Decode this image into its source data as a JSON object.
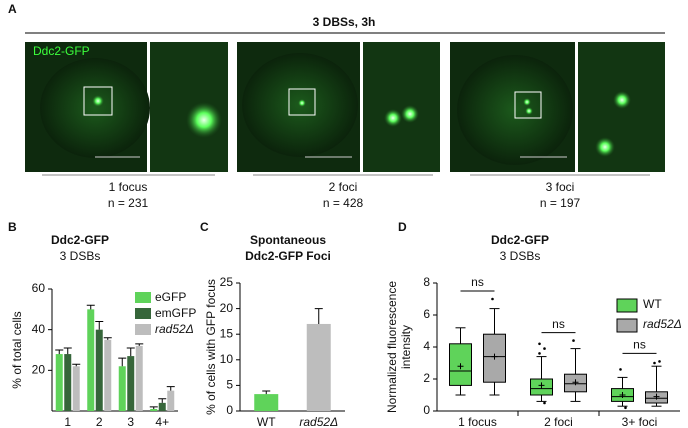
{
  "panels": [
    "A",
    "B",
    "C",
    "D"
  ],
  "panel_a": {
    "title": "3 DBSs, 3h",
    "image_label": "Ddc2-GFP",
    "groups": [
      {
        "label": "1 focus",
        "n": "n = 231"
      },
      {
        "label": "2 foci",
        "n": "n = 428"
      },
      {
        "label": "3 foci",
        "n": "n = 197"
      }
    ]
  },
  "chart_data": [
    {
      "type": "bar",
      "title": "Ddc2-GFP",
      "subtitle": "3 DSBs",
      "y_label": "% of total cells",
      "categories": [
        "1",
        "2",
        "3",
        "4+"
      ],
      "series": [
        {
          "name": "eGFP",
          "color": "#5fd35a",
          "values": [
            28,
            50,
            22,
            1
          ],
          "errors": [
            2,
            2,
            4,
            1
          ]
        },
        {
          "name": "emGFP",
          "color": "#36663a",
          "values": [
            28,
            40,
            27,
            4
          ],
          "errors": [
            3,
            4,
            4,
            2
          ]
        },
        {
          "name": "rad52Δ",
          "color": "#bdbdbd",
          "values": [
            22,
            35,
            32,
            10
          ],
          "errors": [
            1,
            1,
            1,
            2
          ]
        }
      ],
      "ylim": [
        0,
        60
      ],
      "yticks": [
        20,
        40,
        60
      ]
    },
    {
      "type": "bar",
      "title": "Spontaneous",
      "subtitle": "Ddc2-GFP Foci",
      "y_label": "% of cells with GFP focus",
      "categories": [
        "WT",
        "rad52Δ"
      ],
      "values": [
        3.3,
        17
      ],
      "errors": [
        0.6,
        3
      ],
      "colors": [
        "#5fd35a",
        "#bdbdbd"
      ],
      "ylim": [
        0,
        25
      ],
      "yticks": [
        0,
        5,
        10,
        15,
        20,
        25
      ]
    },
    {
      "type": "box",
      "title": "Ddc2-GFP",
      "subtitle": "3 DSBs",
      "y_label": "Normalized fluorescence intensity",
      "categories": [
        "1 focus",
        "2 foci",
        "3+ foci"
      ],
      "annotations": [
        "ns",
        "ns",
        "ns"
      ],
      "series": [
        {
          "name": "WT",
          "color": "#5fd35a",
          "boxes": [
            {
              "min": 1,
              "q1": 1.6,
              "median": 2.5,
              "q3": 4.2,
              "max": 5.2,
              "mean": 2.8,
              "outliers": []
            },
            {
              "min": 0.6,
              "q1": 1,
              "median": 1.4,
              "q3": 2,
              "max": 3.4,
              "mean": 1.6,
              "outliers": [
                3.6,
                3.9,
                4.2,
                0.5
              ]
            },
            {
              "min": 0.3,
              "q1": 0.6,
              "median": 0.9,
              "q3": 1.4,
              "max": 2.1,
              "mean": 1,
              "outliers": [
                2.6,
                0.2
              ]
            }
          ]
        },
        {
          "name": "rad52Δ",
          "color": "#a9a9a9",
          "boxes": [
            {
              "min": 1,
              "q1": 1.8,
              "median": 3.4,
              "q3": 4.8,
              "max": 6.4,
              "mean": 3.4,
              "outliers": [
                7
              ]
            },
            {
              "min": 0.6,
              "q1": 1.2,
              "median": 1.7,
              "q3": 2.3,
              "max": 3.9,
              "mean": 1.8,
              "outliers": [
                4.4
              ]
            },
            {
              "min": 0.3,
              "q1": 0.5,
              "median": 0.8,
              "q3": 1.2,
              "max": 2.8,
              "mean": 0.9,
              "outliers": [
                3,
                3.1
              ]
            }
          ]
        }
      ],
      "ylim": [
        0,
        8
      ],
      "yticks": [
        0,
        2,
        4,
        6,
        8
      ]
    }
  ]
}
